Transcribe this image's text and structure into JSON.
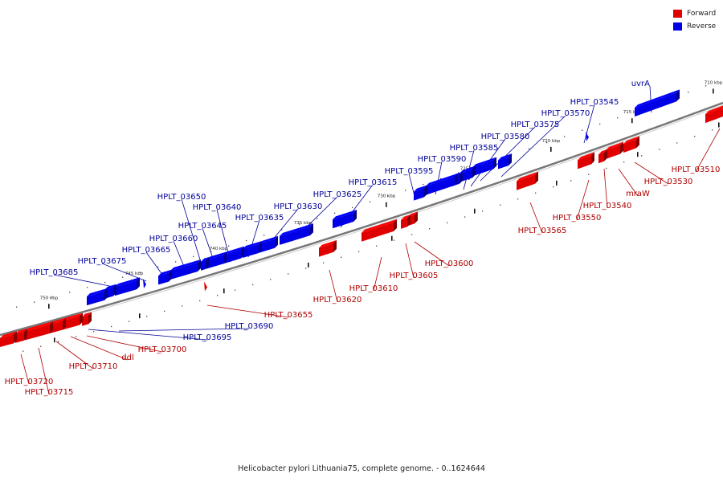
{
  "title": "Helicobacter pylori Lithuania75, complete genome. - 0..1624644",
  "legend": {
    "items": [
      {
        "label": "Forward",
        "color": "#e00000"
      },
      {
        "label": "Reverse",
        "color": "#0000e6"
      }
    ]
  },
  "colors": {
    "forward": "#e00000",
    "reverse": "#0000e6",
    "backbone": "#777777",
    "forward_label": "#b00000",
    "reverse_label": "#000099"
  },
  "scale": {
    "ticks": [
      "710 kbp",
      "715 kbp",
      "720 kbp",
      "725 kbp",
      "730 kbp",
      "735 kbp",
      "740 kbp",
      "745 kbp",
      "750 kbp"
    ]
  },
  "genes": {
    "forward": [
      "HPLT_03510",
      "HPLT_03530",
      "mraW",
      "HPLT_03540",
      "HPLT_03550",
      "HPLT_03565",
      "HPLT_03600",
      "HPLT_03605",
      "HPLT_03610",
      "HPLT_03620",
      "HPLT_03655",
      "HPLT_03700",
      "ddl",
      "HPLT_03710",
      "HPLT_03715",
      "HPLT_03720"
    ],
    "reverse": [
      "uvrA",
      "HPLT_03545",
      "HPLT_03570",
      "HPLT_03575",
      "HPLT_03580",
      "HPLT_03585",
      "HPLT_03590",
      "HPLT_03595",
      "HPLT_03615",
      "HPLT_03625",
      "HPLT_03630",
      "HPLT_03635",
      "HPLT_03640",
      "HPLT_03645",
      "HPLT_03650",
      "HPLT_03660",
      "HPLT_03665",
      "HPLT_03675",
      "HPLT_03685",
      "HPLT_03690",
      "HPLT_03695"
    ]
  }
}
